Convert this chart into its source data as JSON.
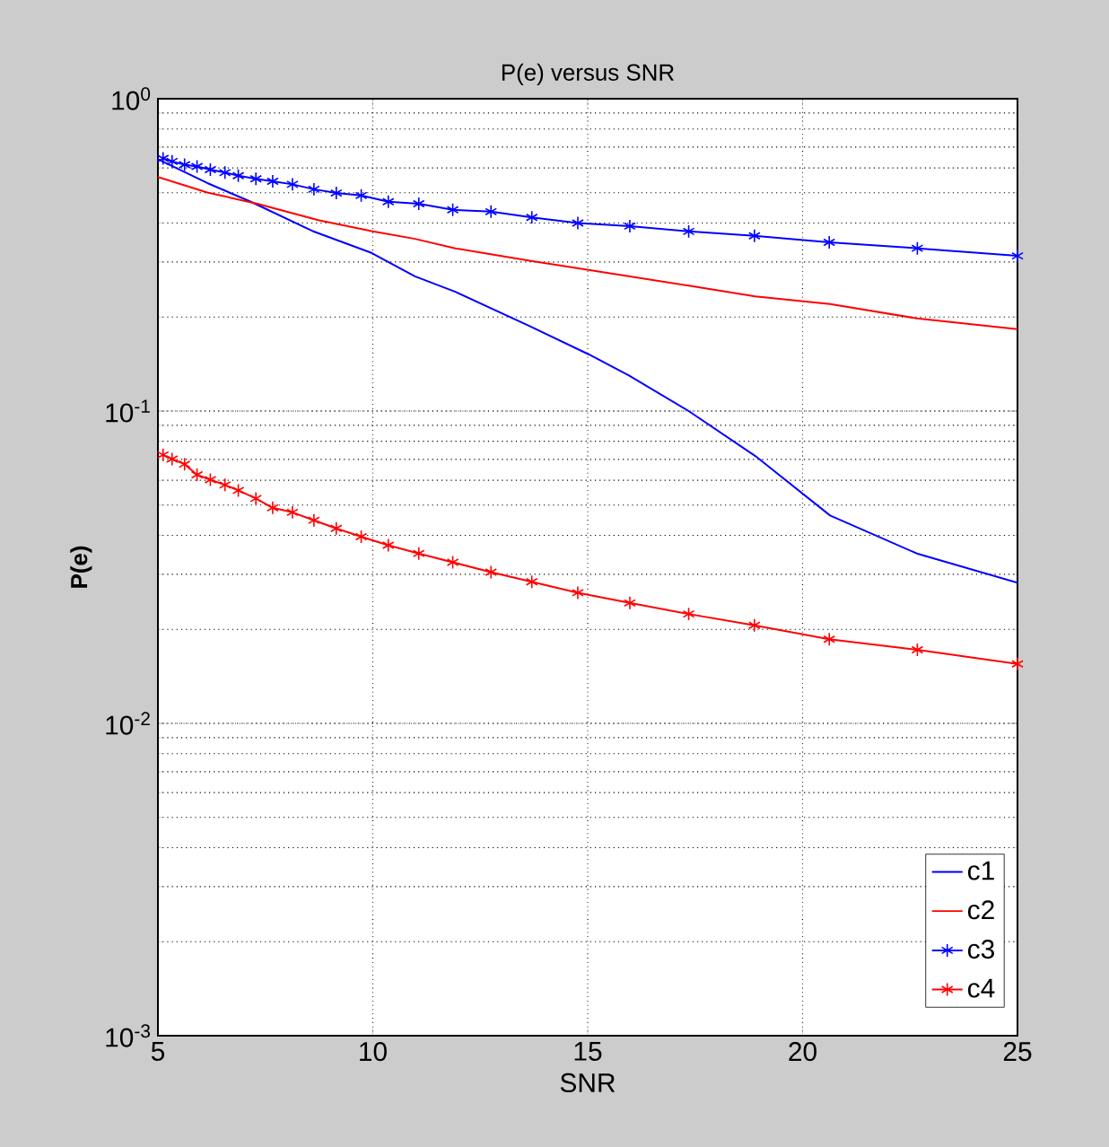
{
  "chart_data": {
    "type": "line",
    "title": "P(e) versus SNR",
    "xlabel": "SNR",
    "ylabel": "P(e)",
    "log": "y",
    "grid": true,
    "legend": "bottom right",
    "xlim": [
      5,
      25
    ],
    "xticks": [
      5,
      10,
      15,
      20,
      25
    ],
    "ylim": [
      0.001,
      1
    ],
    "yticks": [
      {
        "value": 0.001,
        "label": "10$^{-3}$"
      },
      {
        "value": 0.01,
        "label": "10$^{-2}$"
      },
      {
        "value": 0.1,
        "label": "10$^{-1}$"
      },
      {
        "value": 1,
        "label": "10$^{0}$"
      }
    ],
    "series": [
      {
        "name": "c1",
        "color": "#0000ff",
        "marker": "none",
        "x": [
          5,
          6.15,
          7.16,
          8.6,
          9.97,
          10.98,
          11.92,
          13.65,
          15.02,
          15.96,
          17.35,
          18.9,
          20.64,
          22.66,
          25
        ],
        "values": [
          0.64,
          0.537,
          0.468,
          0.377,
          0.321,
          0.27,
          0.241,
          0.187,
          0.152,
          0.13,
          0.1,
          0.0718,
          0.0463,
          0.035,
          0.0282
        ]
      },
      {
        "name": "c2",
        "color": "#ff0000",
        "marker": "none",
        "x": [
          5,
          6.15,
          7.31,
          8.75,
          9.97,
          10.98,
          11.92,
          13.65,
          15.02,
          17.35,
          18.9,
          20.64,
          22.66,
          25
        ],
        "values": [
          0.562,
          0.501,
          0.461,
          0.408,
          0.377,
          0.356,
          0.332,
          0.303,
          0.283,
          0.252,
          0.233,
          0.22,
          0.198,
          0.183
        ]
      },
      {
        "name": "c3",
        "color": "#0000ff",
        "marker": "cross",
        "x": [
          5.12,
          5.33,
          5.62,
          5.91,
          6.22,
          6.56,
          6.87,
          7.28,
          7.67,
          8.13,
          8.63,
          9.15,
          9.73,
          10.36,
          11.07,
          11.86,
          12.75,
          13.7,
          14.77,
          15.98,
          17.35,
          18.88,
          20.62,
          22.67,
          25
        ],
        "values": [
          0.644,
          0.63,
          0.615,
          0.607,
          0.593,
          0.58,
          0.567,
          0.554,
          0.544,
          0.532,
          0.513,
          0.499,
          0.49,
          0.468,
          0.461,
          0.441,
          0.435,
          0.417,
          0.4,
          0.391,
          0.376,
          0.364,
          0.347,
          0.332,
          0.314
        ]
      },
      {
        "name": "c4",
        "color": "#ff0000",
        "marker": "cross",
        "x": [
          5.12,
          5.33,
          5.62,
          5.91,
          6.22,
          6.56,
          6.87,
          7.28,
          7.67,
          8.13,
          8.63,
          9.15,
          9.73,
          10.36,
          11.07,
          11.86,
          12.75,
          13.7,
          14.77,
          15.98,
          17.35,
          18.88,
          20.62,
          22.67,
          25
        ],
        "values": [
          0.0724,
          0.0702,
          0.0676,
          0.0625,
          0.0603,
          0.058,
          0.0557,
          0.0525,
          0.049,
          0.0474,
          0.0447,
          0.0421,
          0.0396,
          0.0372,
          0.035,
          0.0328,
          0.0305,
          0.0284,
          0.0262,
          0.0243,
          0.0224,
          0.0206,
          0.0186,
          0.0172,
          0.0155
        ]
      }
    ]
  }
}
